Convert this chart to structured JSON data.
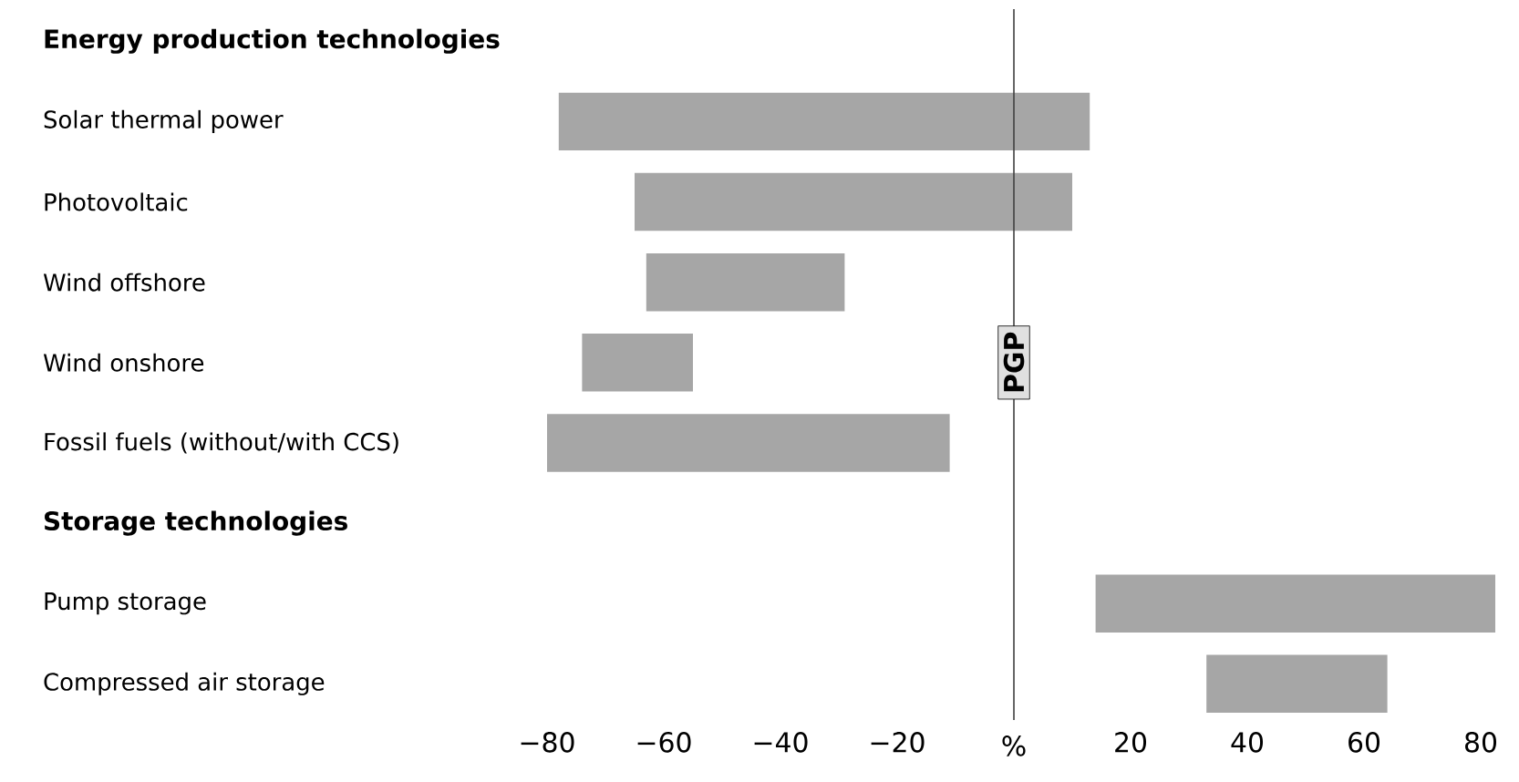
{
  "chart_data": {
    "type": "bar",
    "orientation": "horizontal",
    "categories": [
      "Energy production technologies",
      "Solar thermal power",
      "Photovoltaic",
      "Wind offshore",
      "Wind onshore",
      "Fossil fuels (without/with CCS)",
      "Storage technologies",
      "Pump storage",
      "Compressed air storage"
    ],
    "base": [
      null,
      -78,
      -65,
      -63,
      -74,
      -80,
      null,
      14,
      33
    ],
    "values": [
      null,
      91,
      75,
      34,
      19,
      69,
      null,
      68.5,
      31
    ],
    "color": "#a6a6a6",
    "xticks": [
      {
        "value": -80,
        "label": "−80"
      },
      {
        "value": -60,
        "label": "−60"
      },
      {
        "value": -40,
        "label": "−40"
      },
      {
        "value": -20,
        "label": "−20"
      },
      20,
      40,
      60,
      80
    ],
    "xlim": [
      -80,
      82.5
    ],
    "xlabel": "%",
    "ref_lines": [
      {
        "axis": "x",
        "value": 0,
        "label": "PGP",
        "color": "#404040"
      }
    ]
  }
}
